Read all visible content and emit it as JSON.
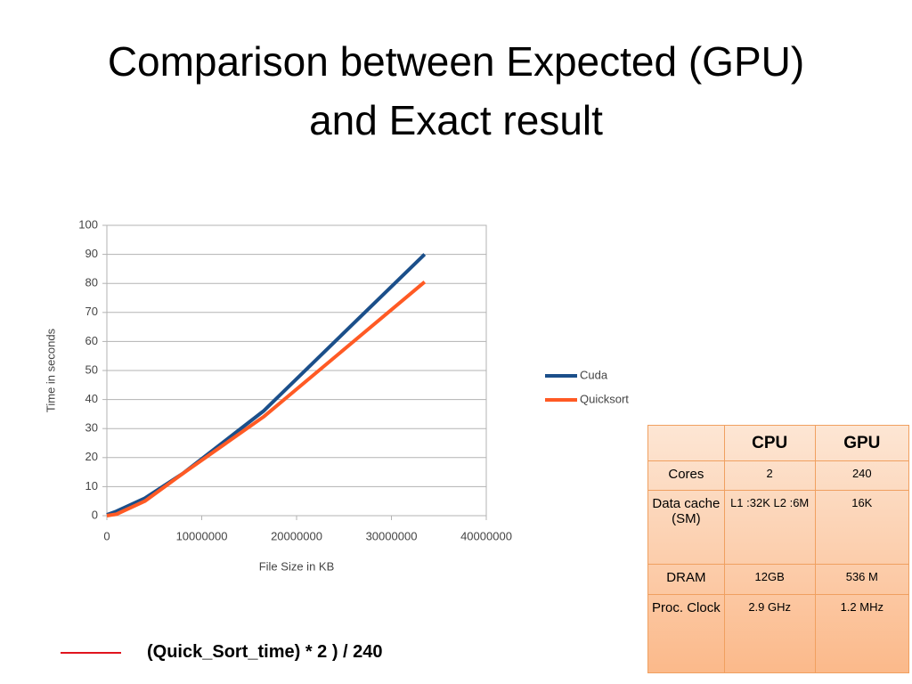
{
  "title": [
    "Comparison between Expected (GPU)",
    "and Exact result"
  ],
  "chart_data": {
    "type": "line",
    "x": [
      0,
      1000000,
      4000000,
      8000000,
      16500000,
      33500000
    ],
    "series": [
      {
        "name": "Cuda",
        "color": "#1b4f8a",
        "values": [
          0.3,
          1.5,
          6,
          14.5,
          36,
          90
        ]
      },
      {
        "name": "Quicksort",
        "color": "#ff5a24",
        "values": [
          0,
          0.5,
          5,
          14.5,
          34,
          80.5
        ]
      }
    ],
    "xlim": [
      0,
      40000000
    ],
    "xticks": [
      0,
      10000000,
      20000000,
      30000000,
      40000000
    ],
    "ylim": [
      0,
      100
    ],
    "yticks": [
      0,
      10,
      20,
      30,
      40,
      50,
      60,
      70,
      80,
      90,
      100
    ],
    "xlabel": "File Size in KB",
    "ylabel": "Time in seconds",
    "grid": true,
    "legend": "right"
  },
  "table": {
    "header": [
      "",
      "CPU",
      "GPU"
    ],
    "rows": [
      [
        "Cores",
        "2",
        "240"
      ],
      [
        "Data cache (SM)",
        "L1 :32K L2 :6M",
        "16K"
      ],
      [
        "DRAM",
        "12GB",
        "536 M"
      ],
      [
        "Proc. Clock",
        "2.9 GHz",
        "1.2 MHz"
      ]
    ]
  },
  "note": "(Quick_Sort_time) * 2 ) / 240"
}
